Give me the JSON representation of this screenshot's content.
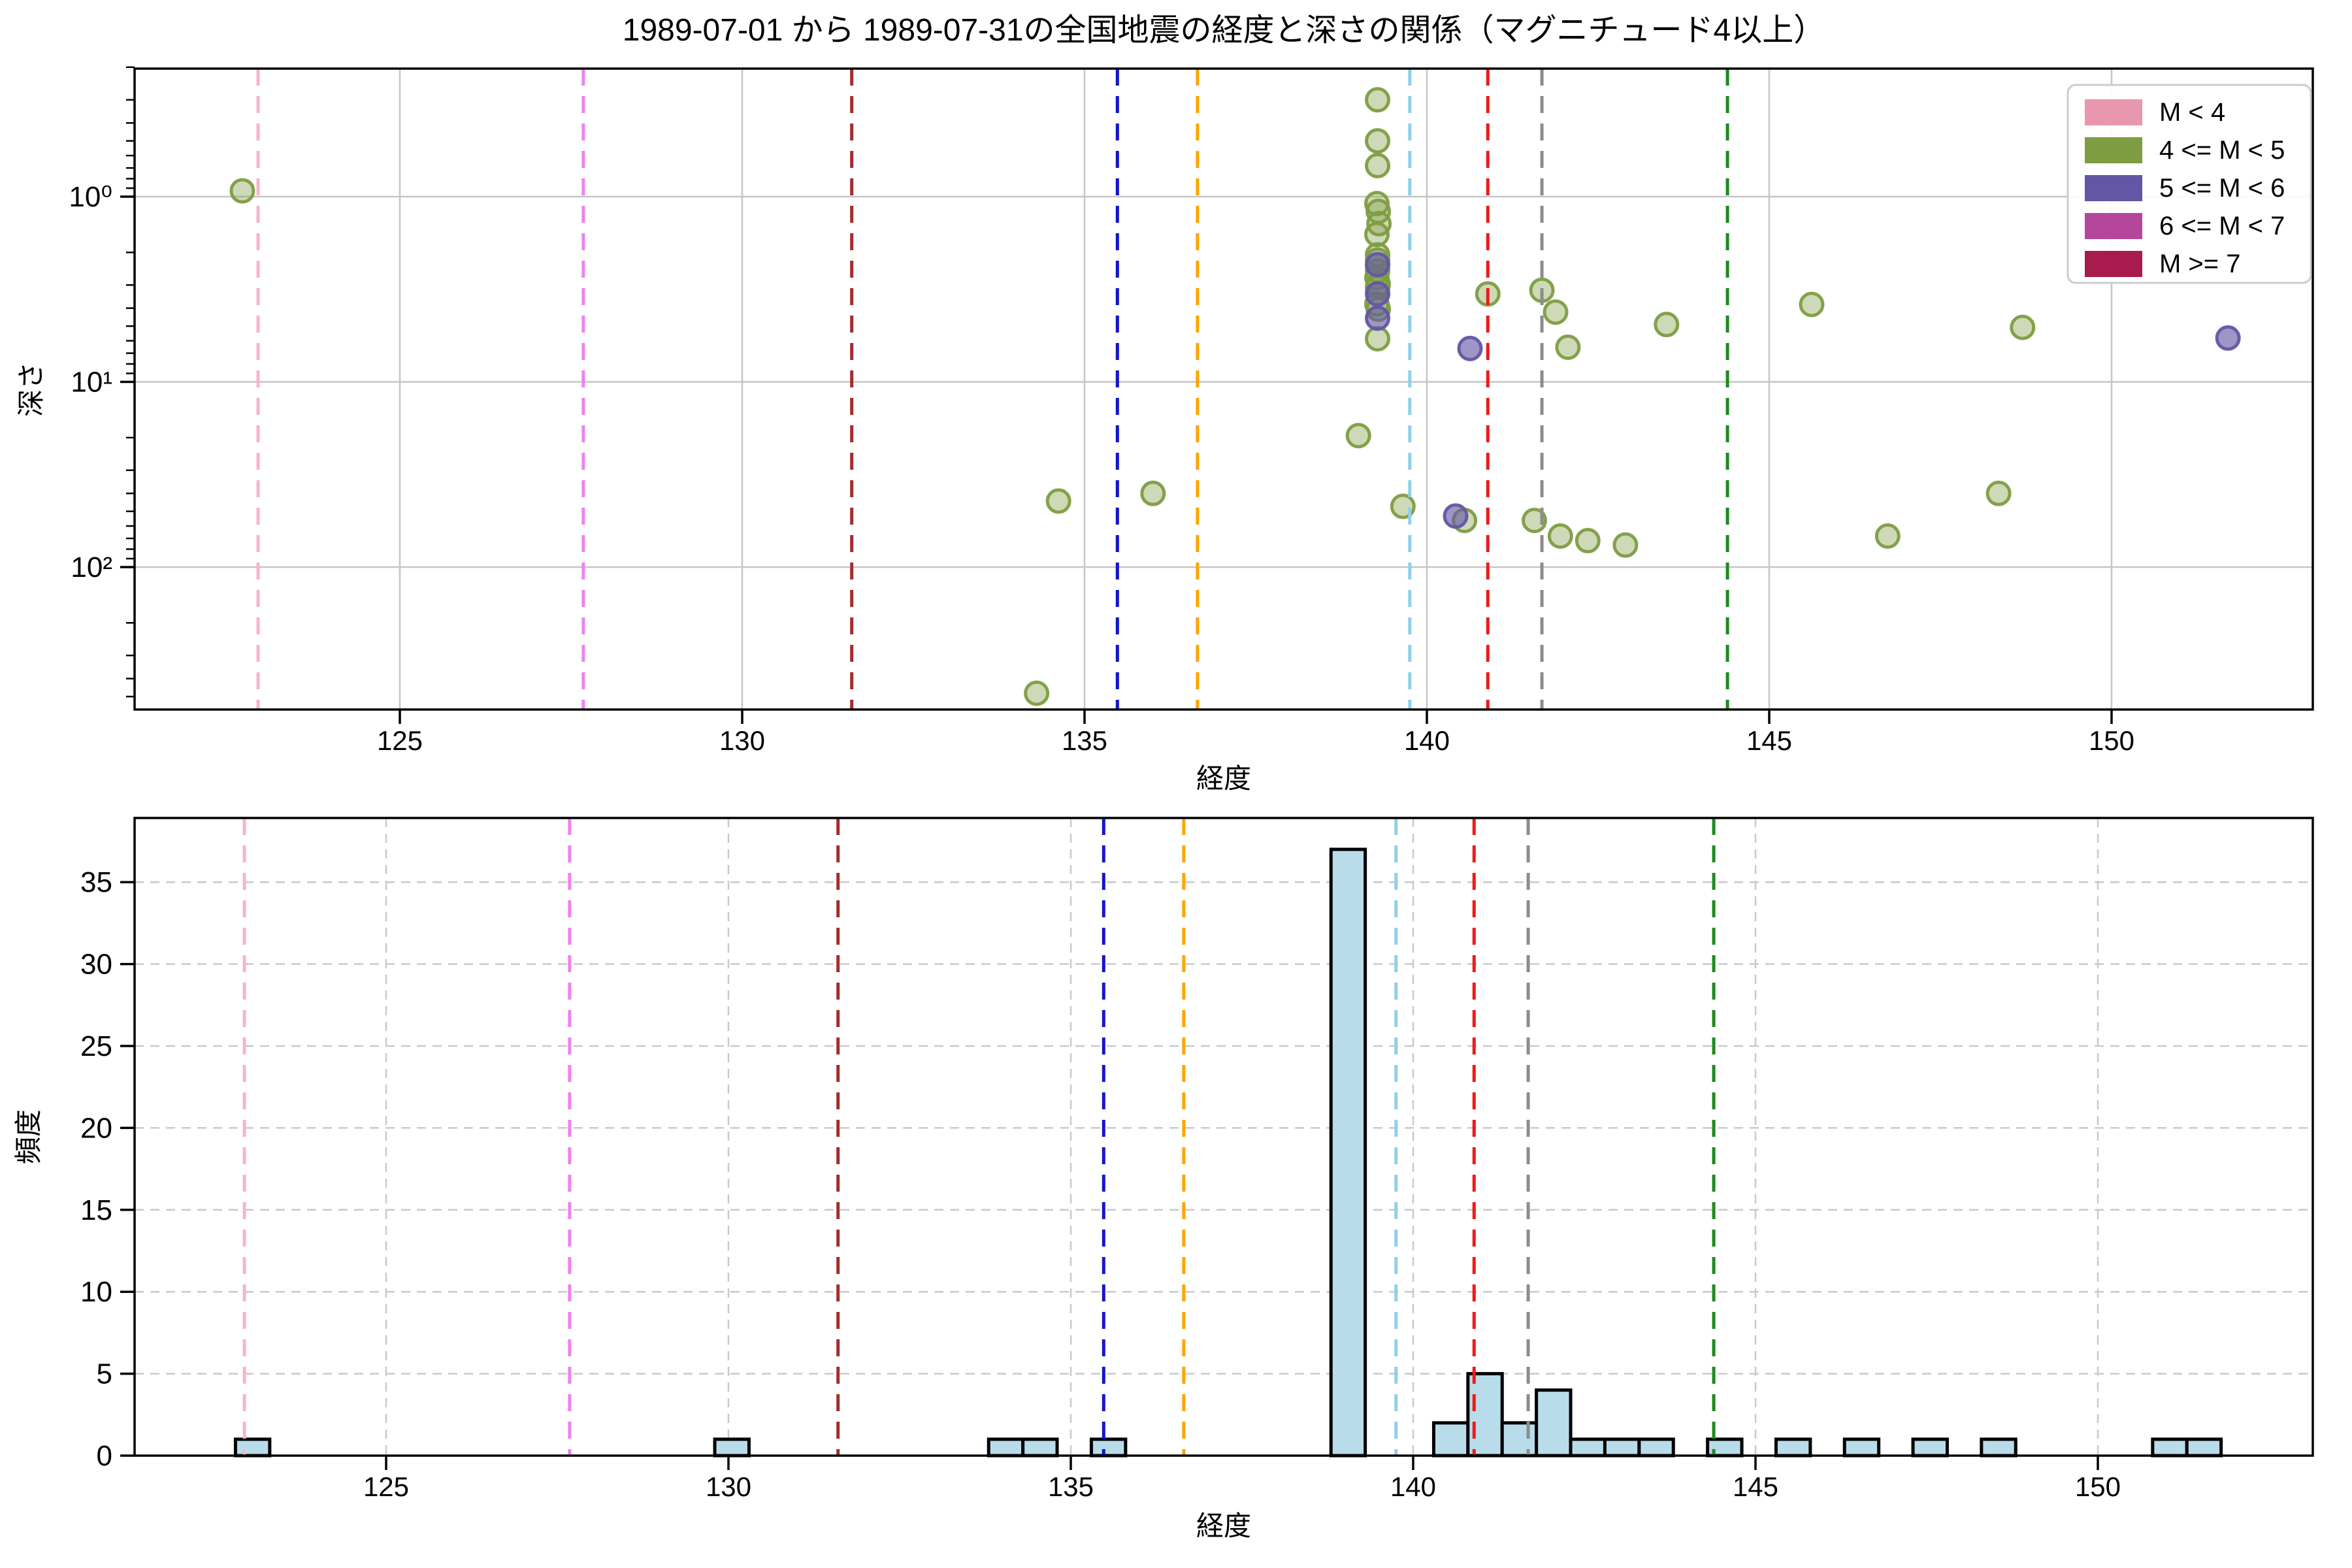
{
  "figure": {
    "title": "1989-07-01 から 1989-07-31の全国地震の経度と深さの関係（マグニチュード4以上）",
    "background": "#ffffff"
  },
  "legend": {
    "entries": [
      {
        "label": "M < 4",
        "color": "#e897ae"
      },
      {
        "label": "4 <= M < 5",
        "color": "#7e9d42"
      },
      {
        "label": "5 <= M < 6",
        "color": "#6356a4"
      },
      {
        "label": "6 <= M < 7",
        "color": "#b4479b"
      },
      {
        "label": "M >= 7",
        "color": "#a81b4d"
      }
    ]
  },
  "vlines": [
    {
      "x": 122.93,
      "color": "#f8b5c5"
    },
    {
      "x": 127.68,
      "color": "#ee82ee"
    },
    {
      "x": 131.6,
      "color": "#a32d2d"
    },
    {
      "x": 135.48,
      "color": "#1414cd"
    },
    {
      "x": 136.65,
      "color": "#ffa500"
    },
    {
      "x": 139.75,
      "color": "#8ed0ec"
    },
    {
      "x": 140.89,
      "color": "#ef1a1a"
    },
    {
      "x": 141.68,
      "color": "#8c8c8c"
    },
    {
      "x": 144.39,
      "color": "#1e8b1e"
    }
  ],
  "chart_data": [
    {
      "type": "scatter",
      "title": "1989-07-01 から 1989-07-31の全国地震の経度と深さの関係（マグニチュード4以上）",
      "xlabel": "経度",
      "ylabel": "深さ",
      "x_axis": {
        "ticks": [
          125,
          130,
          135,
          140,
          145,
          150
        ],
        "lim": [
          121.13,
          152.94
        ]
      },
      "y_axis": {
        "scale": "log",
        "inverted": true,
        "ticks": [
          1,
          10,
          100
        ],
        "tick_labels": [
          "10⁰",
          "10¹",
          "10²"
        ],
        "lim": [
          0.2,
          588
        ]
      },
      "grid": "solid",
      "legend_position": "upper right",
      "series": [
        {
          "name": "4 <= M < 5",
          "color": "#7e9d42",
          "points": [
            [
              122.7,
              0.93
            ],
            [
              134.3,
              480
            ],
            [
              134.62,
              44
            ],
            [
              136.0,
              40
            ],
            [
              139.0,
              19.5
            ],
            [
              139.28,
              0.3
            ],
            [
              139.28,
              0.5
            ],
            [
              139.28,
              0.68
            ],
            [
              139.27,
              1.09
            ],
            [
              139.29,
              1.2
            ],
            [
              139.3,
              1.4
            ],
            [
              139.27,
              1.6
            ],
            [
              139.28,
              2.06
            ],
            [
              139.28,
              2.2
            ],
            [
              139.28,
              2.52
            ],
            [
              139.27,
              2.74
            ],
            [
              139.29,
              2.97
            ],
            [
              139.28,
              3.09
            ],
            [
              139.27,
              3.8
            ],
            [
              139.29,
              4.05
            ],
            [
              139.28,
              5.85
            ],
            [
              139.65,
              47
            ],
            [
              140.55,
              56
            ],
            [
              141.57,
              56
            ],
            [
              141.95,
              68
            ],
            [
              142.35,
              72
            ],
            [
              142.9,
              76
            ],
            [
              140.89,
              3.35
            ],
            [
              141.68,
              3.2
            ],
            [
              141.88,
              4.2
            ],
            [
              142.06,
              6.5
            ],
            [
              143.5,
              4.9
            ],
            [
              145.62,
              3.82
            ],
            [
              146.73,
              68
            ],
            [
              148.35,
              40
            ],
            [
              148.7,
              5.08
            ]
          ]
        },
        {
          "name": "5 <= M < 6",
          "color": "#6356a4",
          "points": [
            [
              139.28,
              2.33
            ],
            [
              139.28,
              3.35
            ],
            [
              139.28,
              4.53
            ],
            [
              140.63,
              6.6
            ],
            [
              140.42,
              53
            ],
            [
              151.7,
              5.8
            ]
          ]
        }
      ]
    },
    {
      "type": "histogram",
      "xlabel": "経度",
      "ylabel": "頻度",
      "x_axis": {
        "ticks": [
          125,
          130,
          135,
          140,
          145,
          150
        ],
        "lim": [
          121.32,
          153.14
        ]
      },
      "y_axis": {
        "ticks": [
          0,
          5,
          10,
          15,
          20,
          25,
          30,
          35
        ],
        "lim": [
          0,
          38.9
        ]
      },
      "grid": "dashed",
      "bar_color": "#b9dcea",
      "bar_edge": "#000000",
      "bin_width": 0.5,
      "bins": [
        {
          "start": 122.8,
          "count": 1
        },
        {
          "start": 129.8,
          "count": 1
        },
        {
          "start": 133.8,
          "count": 1
        },
        {
          "start": 134.3,
          "count": 1
        },
        {
          "start": 135.3,
          "count": 1
        },
        {
          "start": 138.8,
          "count": 37
        },
        {
          "start": 140.3,
          "count": 2
        },
        {
          "start": 140.8,
          "count": 5
        },
        {
          "start": 141.3,
          "count": 2
        },
        {
          "start": 141.8,
          "count": 4
        },
        {
          "start": 142.3,
          "count": 1
        },
        {
          "start": 142.8,
          "count": 1
        },
        {
          "start": 143.3,
          "count": 1
        },
        {
          "start": 144.3,
          "count": 1
        },
        {
          "start": 145.3,
          "count": 1
        },
        {
          "start": 146.3,
          "count": 1
        },
        {
          "start": 147.3,
          "count": 1
        },
        {
          "start": 148.3,
          "count": 1
        },
        {
          "start": 150.8,
          "count": 1
        },
        {
          "start": 151.3,
          "count": 1
        }
      ]
    }
  ]
}
